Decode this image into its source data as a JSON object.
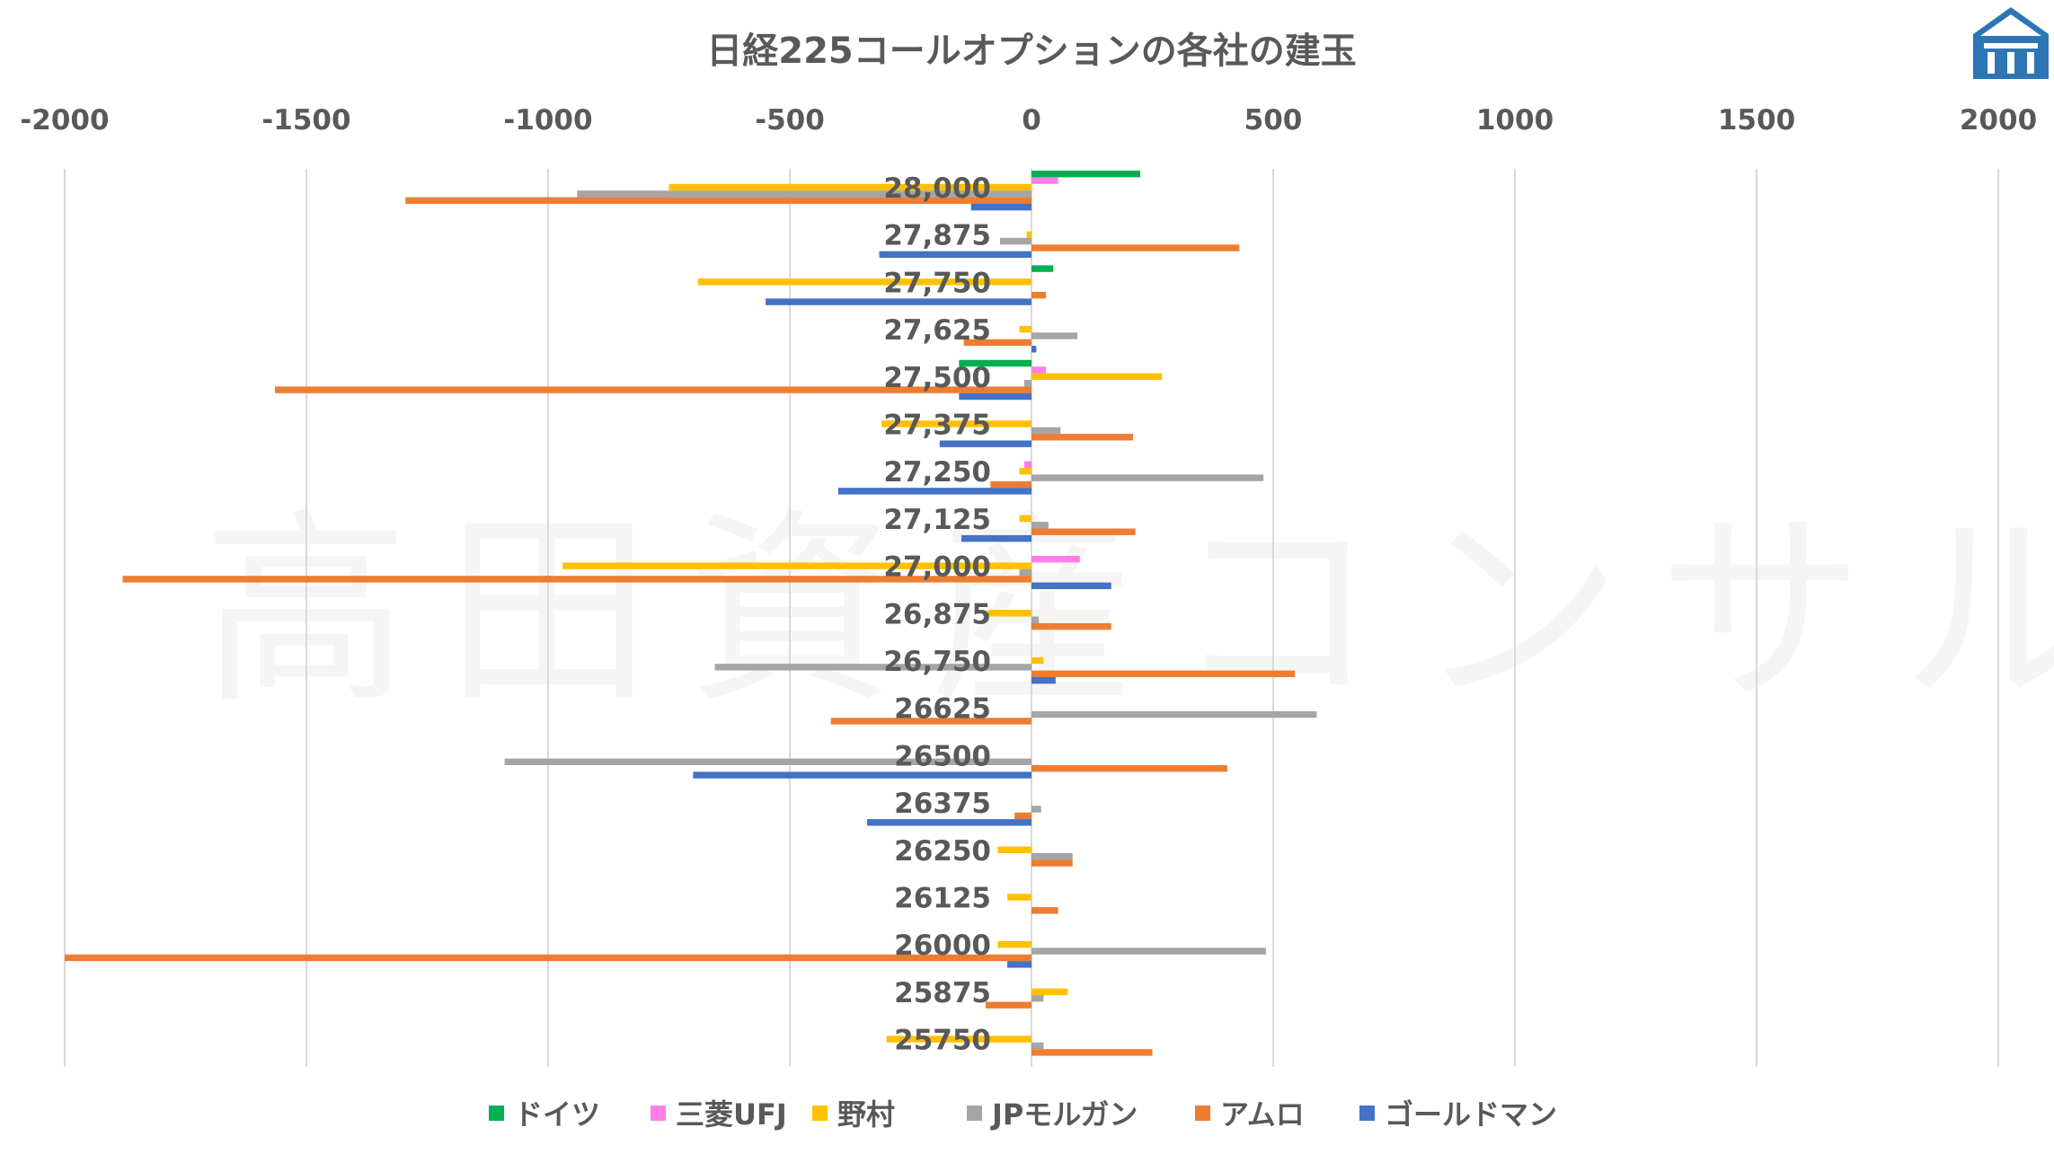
{
  "watermark_text": "高田資産コンサル",
  "logo_icon": "takata-house-logo-icon",
  "chart_data": {
    "type": "bar",
    "orientation": "horizontal",
    "title": "日経225コールオプションの各社の建玉",
    "xlabel": "",
    "ylabel": "",
    "xlim": [
      -2000,
      2000
    ],
    "xticks": [
      -2000,
      -1500,
      -1000,
      -500,
      0,
      500,
      1000,
      1500,
      2000
    ],
    "xtick_position": "top",
    "grid": true,
    "legend_position": "bottom",
    "categories": [
      "28,000",
      "27,875",
      "27,750",
      "27,625",
      "27,500",
      "27,375",
      "27,250",
      "27,125",
      "27,000",
      "26,875",
      "26,750",
      "26625",
      "26500",
      "26375",
      "26250",
      "26125",
      "26000",
      "25875",
      "25750"
    ],
    "series": [
      {
        "name": "ドイツ",
        "color": "#00B050",
        "values": [
          225,
          0,
          45,
          0,
          -150,
          0,
          0,
          0,
          0,
          0,
          0,
          0,
          0,
          0,
          0,
          0,
          0,
          0,
          0
        ]
      },
      {
        "name": "三菱UFJ",
        "color": "#FF7FE6",
        "values": [
          55,
          0,
          0,
          0,
          30,
          0,
          -15,
          0,
          100,
          0,
          0,
          0,
          0,
          0,
          0,
          0,
          0,
          0,
          0
        ]
      },
      {
        "name": "野村",
        "color": "#FFC000",
        "values": [
          -750,
          -10,
          -690,
          -25,
          270,
          -310,
          -25,
          -25,
          -970,
          -90,
          25,
          0,
          0,
          0,
          -70,
          -50,
          -70,
          75,
          -300
        ]
      },
      {
        "name": "JPモルガン",
        "color": "#A5A5A5",
        "values": [
          -940,
          -65,
          0,
          95,
          -15,
          60,
          480,
          35,
          -25,
          15,
          -655,
          590,
          -1090,
          20,
          85,
          0,
          485,
          25,
          25
        ]
      },
      {
        "name": "アムロ",
        "color": "#ED7D31",
        "values": [
          -1295,
          430,
          30,
          -140,
          -1565,
          210,
          -85,
          215,
          -1880,
          165,
          545,
          -415,
          405,
          -35,
          85,
          55,
          -2000,
          -95,
          250
        ]
      },
      {
        "name": "ゴールドマン",
        "color": "#4472C4",
        "values": [
          -125,
          -315,
          -550,
          10,
          -150,
          -190,
          -400,
          -145,
          165,
          0,
          50,
          0,
          -700,
          -340,
          0,
          0,
          -50,
          0,
          0
        ]
      }
    ]
  }
}
